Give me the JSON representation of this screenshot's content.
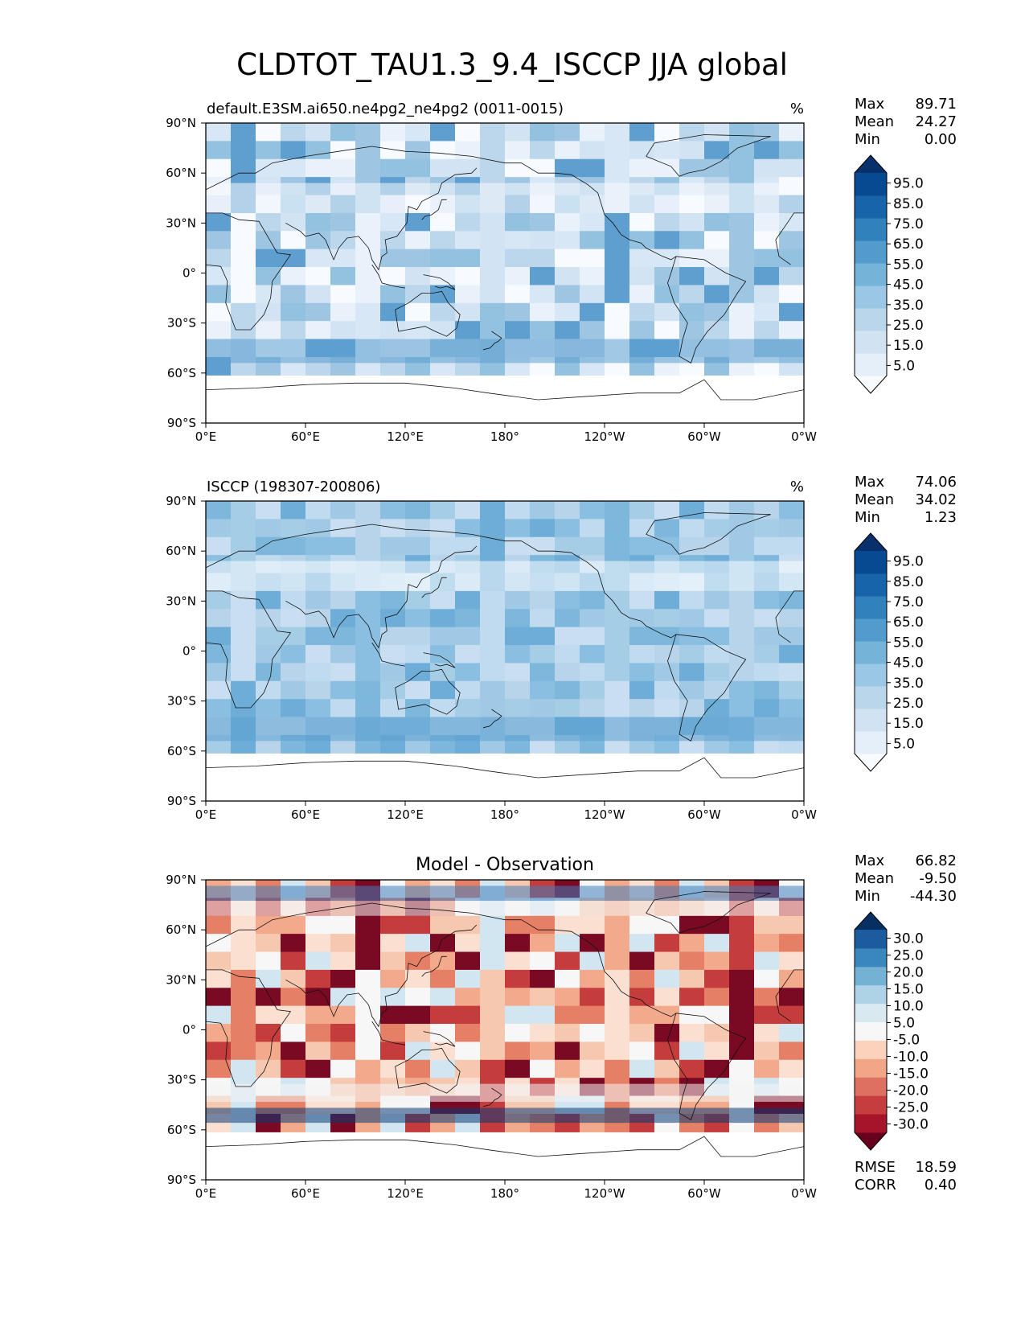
{
  "title": "CLDTOT_TAU1.3_9.4_ISCCP JJA global",
  "x_ticks": [
    "0°E",
    "60°E",
    "120°E",
    "180°",
    "120°W",
    "60°W",
    "0°W"
  ],
  "y_ticks": [
    "90°N",
    "60°N",
    "30°N",
    "0°",
    "30°S",
    "60°S",
    "90°S"
  ],
  "panels": [
    {
      "id": "model",
      "left_title": "default.E3SM.ai650.ne4pg2_ne4pg2 (0011-0015)",
      "center_title": "",
      "units": "%",
      "stats": [
        {
          "label": "Max",
          "value": "89.71"
        },
        {
          "label": "Mean",
          "value": "24.27"
        },
        {
          "label": "Min",
          "value": "0.00"
        }
      ],
      "colorbar_labels": [
        "95.0",
        "85.0",
        "75.0",
        "65.0",
        "55.0",
        "45.0",
        "35.0",
        "25.0",
        "15.0",
        "5.0"
      ],
      "colorbar_colors": [
        "#f7fbff",
        "#e4eff9",
        "#d1e3f3",
        "#bad6eb",
        "#99c7e4",
        "#75b4d8",
        "#519ccc",
        "#3181bd",
        "#1764ab",
        "#084a92",
        "#08306b"
      ]
    },
    {
      "id": "obs",
      "left_title": "ISCCP (198307-200806)",
      "center_title": "",
      "units": "%",
      "stats": [
        {
          "label": "Max",
          "value": "74.06"
        },
        {
          "label": "Mean",
          "value": "34.02"
        },
        {
          "label": "Min",
          "value": "1.23"
        }
      ],
      "colorbar_labels": [
        "95.0",
        "85.0",
        "75.0",
        "65.0",
        "55.0",
        "45.0",
        "35.0",
        "25.0",
        "15.0",
        "5.0"
      ],
      "colorbar_colors": [
        "#f7fbff",
        "#e4eff9",
        "#d1e3f3",
        "#bad6eb",
        "#99c7e4",
        "#75b4d8",
        "#519ccc",
        "#3181bd",
        "#1764ab",
        "#084a92",
        "#08306b"
      ]
    },
    {
      "id": "diff",
      "left_title": "",
      "center_title": "Model - Observation",
      "units": "",
      "stats": [
        {
          "label": "Max",
          "value": "66.82"
        },
        {
          "label": "Mean",
          "value": "-9.50"
        },
        {
          "label": "Min",
          "value": "-44.30"
        }
      ],
      "colorbar_labels": [
        "30.0",
        "25.0",
        "20.0",
        "15.0",
        "10.0",
        "5.0",
        "-5.0",
        "-10.0",
        "-15.0",
        "-20.0",
        "-25.0",
        "-30.0"
      ],
      "colorbar_colors": [
        "#67001f",
        "#a51429",
        "#c53e3d",
        "#de7062",
        "#f1a787",
        "#fbd2bc",
        "#f7f7f7",
        "#d8e9f1",
        "#aed3e6",
        "#74b2d4",
        "#3a87bd",
        "#1c5c9e",
        "#053061"
      ],
      "bottom_stats": [
        {
          "label": "RMSE",
          "value": "18.59"
        },
        {
          "label": "CORR",
          "value": "0.40"
        }
      ]
    }
  ]
}
